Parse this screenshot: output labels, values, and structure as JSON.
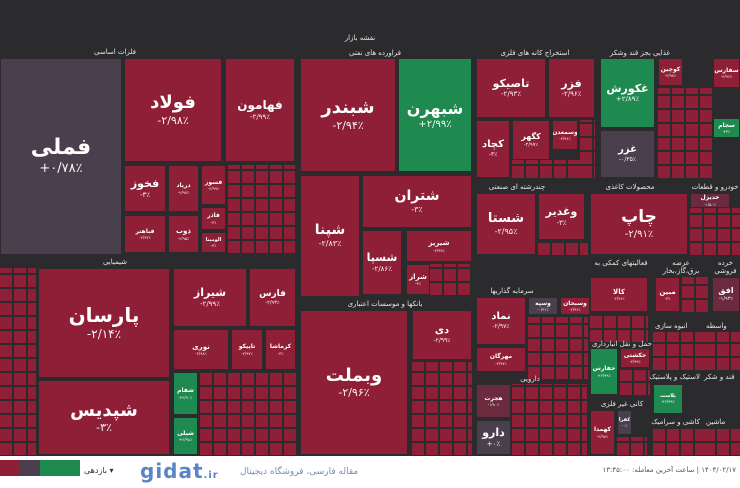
{
  "header": {
    "title": "نقشه بازار"
  },
  "colors": {
    "negative": "#8e1f36",
    "positive": "#1f8a4f",
    "neutral": "#4a3f4c",
    "background": "#2b2b2d"
  },
  "categories": {
    "basic_metals": "فلزات اساسی",
    "oil_products": "فراورده های نفتی",
    "metal_ores": "استخراج کانه های فلزی",
    "food": "غذایی بجز قند وشکر",
    "chemicals": "شیمیایی",
    "multi_industrial": "چندرشته ای صنعتی",
    "paper": "محصولات کاغذی",
    "auto": "خودرو و قطعات",
    "banks": "بانکها و موسسات اعتباری",
    "investments": "سرمایه گذاریها",
    "support": "فعالیتهای کمکی به",
    "utilities": "عرضه برق،گاز،بخار",
    "retail": "خرده فروشی",
    "pharma": "دارویی",
    "transport": "حمل و نقل انبارداری",
    "construction": "انبوه سازی",
    "intermediary": "واسطه",
    "rubber": "لاستیک و پلاستیک",
    "sugar": "قند و شکر",
    "nonmetal": "کانی غیر فلزی",
    "ceramic": "کاشی و سرامیک",
    "machinery": "ماشین"
  },
  "tiles": {
    "fameli": {
      "symbol": "فملی",
      "change": "+۰/۷۸٪",
      "state": "neu"
    },
    "folad": {
      "symbol": "فولاد",
      "change": "-۲/۹۸٪",
      "state": "neg"
    },
    "fahamoon": {
      "symbol": "فهامون",
      "change": "-۲/۹۹٪",
      "state": "neg"
    },
    "fakhooz": {
      "symbol": "فخوز",
      "change": "-۳٪",
      "state": "neg"
    },
    "daryad": {
      "symbol": "دریاد",
      "change": "-۲/۹۷٪",
      "state": "neg"
    },
    "fsuz": {
      "symbol": "فسوز",
      "change": "-۲/۹۹٪",
      "state": "neg"
    },
    "fbahonar": {
      "symbol": "فباهنر",
      "change": "-۲/۹۳٪",
      "state": "neg"
    },
    "zob": {
      "symbol": "ذوب",
      "change": "-۲/۹۵٪",
      "state": "neg"
    },
    "faz": {
      "symbol": "فاذر",
      "change": "-۳٪",
      "state": "neg"
    },
    "alumina": {
      "symbol": "الومینا",
      "change": "-۳٪",
      "state": "neg"
    },
    "shabandar": {
      "symbol": "شبندر",
      "change": "-۲/۹۴٪",
      "state": "neg"
    },
    "shabahran": {
      "symbol": "شبهرن",
      "change": "+۲/۹۹٪",
      "state": "pos"
    },
    "shepna": {
      "symbol": "شپنا",
      "change": "-۲/۸۳٪",
      "state": "neg"
    },
    "shetran": {
      "symbol": "شتران",
      "change": "-۳٪",
      "state": "neg"
    },
    "shesapa": {
      "symbol": "شسپا",
      "change": "-۲/۸۶٪",
      "state": "neg"
    },
    "shiriz": {
      "symbol": "شیریز",
      "change": "-۲/۹۹٪",
      "state": "neg"
    },
    "sharaz": {
      "symbol": "شراز",
      "change": "-۳٪",
      "state": "neg"
    },
    "parsan": {
      "symbol": "پارسان",
      "change": "-۲/۱۴٪",
      "state": "neg"
    },
    "shepdis": {
      "symbol": "شپدیس",
      "change": "-۳٪",
      "state": "neg"
    },
    "shiraz": {
      "symbol": "شیراز",
      "change": "-۲/۹۹٪",
      "state": "neg"
    },
    "fars": {
      "symbol": "فارس",
      "change": "-۲/۹۳٪",
      "state": "neg"
    },
    "nori": {
      "symbol": "نوری",
      "change": "-۲/۹۸٪",
      "state": "neg"
    },
    "tapiko": {
      "symbol": "تاپیکو",
      "change": "-۲/۹۷٪",
      "state": "neg"
    },
    "kermasha": {
      "symbol": "کرماشا",
      "change": "-۳٪",
      "state": "neg"
    },
    "shefam": {
      "symbol": "شفام",
      "change": "+۲/۹۰٪",
      "state": "pos"
    },
    "sheli": {
      "symbol": "شیلی",
      "change": "+۲/۹۸٪",
      "state": "pos"
    },
    "vebmelat": {
      "symbol": "وبملت",
      "change": "-۲/۹۶٪",
      "state": "neg"
    },
    "dey": {
      "symbol": "دی",
      "change": "-۲/۹۹٪",
      "state": "neg"
    },
    "tasiko": {
      "symbol": "تاصیکو",
      "change": "-۲/۹۳٪",
      "state": "neg"
    },
    "fazar": {
      "symbol": "فزر",
      "change": "-۲/۹۶٪",
      "state": "neg"
    },
    "kchad": {
      "symbol": "کچاد",
      "change": "-۳٪",
      "state": "neg"
    },
    "kgohar": {
      "symbol": "کگهر",
      "change": "-۲/۹۷٪",
      "state": "neg"
    },
    "vasmadan": {
      "symbol": "وسمعدن",
      "change": "-۲/۹۶٪",
      "state": "neg"
    },
    "ghakorosh": {
      "symbol": "غکورش",
      "change": "+۲/۸۹٪",
      "state": "pos"
    },
    "ghazar": {
      "symbol": "غزر",
      "change": "-۰/۳۵٪",
      "state": "neu"
    },
    "koochin": {
      "symbol": "کوچین",
      "change": "-۲/۹۷٪",
      "state": "neg"
    },
    "sefars": {
      "symbol": "سفارس",
      "change": "-۲/۹۶٪",
      "state": "neg"
    },
    "sajam": {
      "symbol": "سجام",
      "change": "+۳٪",
      "state": "pos"
    },
    "shesta": {
      "symbol": "شستا",
      "change": "-۲/۹۵٪",
      "state": "neg"
    },
    "veghadir": {
      "symbol": "وغدیر",
      "change": "-۳٪",
      "state": "neg"
    },
    "chap": {
      "symbol": "چاپ",
      "change": "-۲/۹۱٪",
      "state": "neg"
    },
    "khodiesel": {
      "symbol": "خدیزل",
      "change": "-۱/۵۰٪",
      "state": "mid"
    },
    "kala": {
      "symbol": "کالا",
      "change": "-۲/۹۶٪",
      "state": "neg"
    },
    "mobin": {
      "symbol": "مبین",
      "change": "-۳٪",
      "state": "neg"
    },
    "ofogh": {
      "symbol": "افق",
      "change": "-۱/۹۳٪",
      "state": "mid"
    },
    "nmad": {
      "symbol": "نماد",
      "change": "-۲/۹۷٪",
      "state": "neg"
    },
    "vesepeh": {
      "symbol": "وسپه",
      "change": "-۰/۳۱٪",
      "state": "neu"
    },
    "vesobhan": {
      "symbol": "وسبحان",
      "change": "-۲/۹۶٪",
      "state": "neg"
    },
    "mehregan": {
      "symbol": "مهرگان",
      "change": "-۲/۹۷٪",
      "state": "neg"
    },
    "hejrat": {
      "symbol": "هجرت",
      "change": "-۱/۸۰٪",
      "state": "mid"
    },
    "daroo": {
      "symbol": "دارو",
      "change": "+۰٪",
      "state": "neu"
    },
    "hefars": {
      "symbol": "حفارس",
      "change": "+۲/۹۹٪",
      "state": "pos"
    },
    "hkeshti": {
      "symbol": "حکشتی",
      "change": "-۲/۹۹٪",
      "state": "neg"
    },
    "plast": {
      "symbol": "پلاست",
      "change": "+۲/۹۹٪",
      "state": "pos"
    },
    "kahamda": {
      "symbol": "کهمدا",
      "change": "-۲/۹۷٪",
      "state": "neg"
    },
    "kfera": {
      "symbol": "کفرا",
      "change": "-۰٪",
      "state": "neu"
    }
  },
  "footer": {
    "returns_label": "بازدهی",
    "timestamp": "۱۴۰۴/۰۲/۱۷ | ساعت آخرین معامله: ۱۳:۴۵:۰۰"
  },
  "watermark": {
    "logo": "gidat",
    "tld": ".ir",
    "tagline": "مقاله فارسی، فروشگاه دیجیتال"
  }
}
